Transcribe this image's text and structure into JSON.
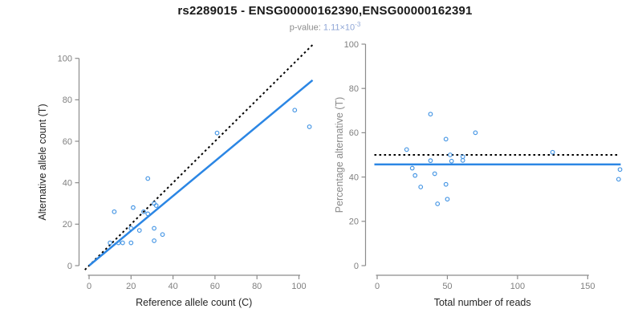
{
  "header": {
    "title": "rs2289015 - ENSG00000162390,ENSG00000162391",
    "pvalue_label": "p-value:",
    "pvalue_mantissa": "1.11×10",
    "pvalue_exponent": "-3"
  },
  "colors": {
    "title": "#1a1a1a",
    "subtitle_label": "#8c8c8c",
    "subtitle_value": "#8fa6d6",
    "axis": "#8c8c8c",
    "tick_label": "#7f7f7f",
    "axis_title_dark": "#262626",
    "axis_title_gray": "#8a8a8a",
    "point_stroke": "#4495e4",
    "fit_line": "#2b86e4",
    "reference_line": "#000000",
    "background": "#ffffff"
  },
  "chart_data": [
    {
      "type": "scatter",
      "name": "allele-counts",
      "xlabel": "Reference allele count (C)",
      "ylabel": "Alternative allele count (T)",
      "xlabel_color": "#262626",
      "ylabel_color": "#262626",
      "xlim": [
        0,
        105
      ],
      "ylim": [
        0,
        105
      ],
      "xticks": [
        0,
        20,
        40,
        60,
        80,
        100
      ],
      "yticks": [
        0,
        20,
        40,
        60,
        80,
        100
      ],
      "grid": false,
      "points": [
        [
          10,
          11
        ],
        [
          12,
          26
        ],
        [
          14,
          11
        ],
        [
          16,
          11
        ],
        [
          20,
          11
        ],
        [
          20,
          18
        ],
        [
          21,
          28
        ],
        [
          24,
          17
        ],
        [
          26,
          26
        ],
        [
          28,
          25
        ],
        [
          28,
          42
        ],
        [
          31,
          12
        ],
        [
          31,
          18
        ],
        [
          31,
          30
        ],
        [
          32,
          29
        ],
        [
          35,
          15
        ],
        [
          61,
          64
        ],
        [
          98,
          75
        ],
        [
          105,
          67
        ]
      ],
      "lines": [
        {
          "name": "identity-line",
          "type": "abline",
          "intercept": 0,
          "slope": 1,
          "style": "dotted",
          "color": "#000000",
          "x_from": -2,
          "x_to": 106.5
        },
        {
          "name": "fit-line",
          "type": "abline",
          "intercept": 0,
          "slope": 0.84,
          "style": "solid",
          "color": "#2b86e4",
          "x_from": 0,
          "x_to": 106.5
        }
      ]
    },
    {
      "type": "scatter",
      "name": "percentage-vs-coverage",
      "xlabel": "Total number of reads",
      "ylabel": "Percentage alternative (T)",
      "xlabel_color": "#262626",
      "ylabel_color": "#8a8a8a",
      "xlim": [
        0,
        175
      ],
      "ylim": [
        0,
        100
      ],
      "xticks": [
        0,
        50,
        100,
        150
      ],
      "yticks": [
        0,
        20,
        40,
        60,
        80,
        100
      ],
      "grid": false,
      "points": [
        [
          21,
          52.4
        ],
        [
          25,
          44.0
        ],
        [
          27,
          40.7
        ],
        [
          31,
          35.5
        ],
        [
          38,
          47.4
        ],
        [
          38,
          68.4
        ],
        [
          41,
          41.5
        ],
        [
          43,
          27.9
        ],
        [
          49,
          36.7
        ],
        [
          49,
          57.1
        ],
        [
          50,
          30.0
        ],
        [
          52,
          50.0
        ],
        [
          53,
          47.2
        ],
        [
          61,
          49.2
        ],
        [
          61,
          47.5
        ],
        [
          70,
          60.0
        ],
        [
          125,
          51.2
        ],
        [
          172,
          39.0
        ],
        [
          173,
          43.4
        ]
      ],
      "lines": [
        {
          "name": "expected-line",
          "type": "hline",
          "y": 50,
          "style": "dotted",
          "color": "#000000",
          "x_from": -2,
          "x_to": 172
        },
        {
          "name": "fit-line",
          "type": "hline",
          "y": 45.7,
          "style": "solid",
          "color": "#2b86e4",
          "x_from": -2,
          "x_to": 173.5
        }
      ]
    }
  ]
}
